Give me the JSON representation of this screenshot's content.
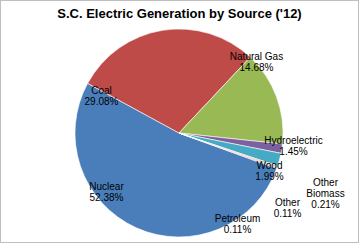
{
  "chart_data": {
    "type": "pie",
    "title": "S.C. Electric Generation by Source ('12)",
    "categories": [
      "Nuclear",
      "Coal",
      "Natural Gas",
      "Hydroelectric",
      "Wood",
      "Other Biomass",
      "Other",
      "Petroleum"
    ],
    "values": [
      52.38,
      29.08,
      14.68,
      1.45,
      1.99,
      0.21,
      0.11,
      0.11
    ],
    "value_labels": [
      "52.38%",
      "29.08%",
      "14.68%",
      "1.45%",
      "1.99%",
      "0.21%",
      "0.11%",
      "0.11%"
    ],
    "colors": [
      "#4a7ebb",
      "#be4b48",
      "#98b954",
      "#7d60a0",
      "#46aac5",
      "#f69240",
      "#2c4d75",
      "#772c2a"
    ],
    "data_labels": true
  }
}
